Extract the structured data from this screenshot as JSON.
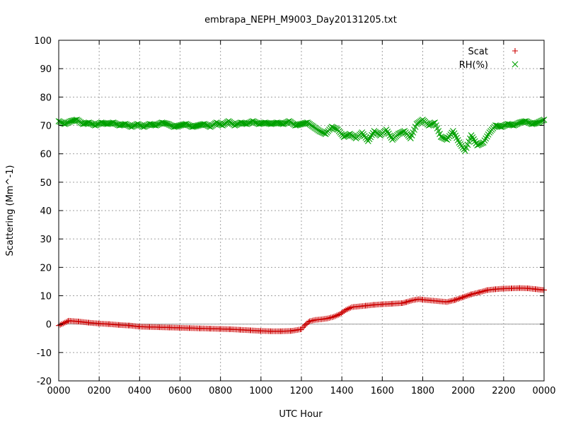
{
  "chart_data": {
    "type": "scatter",
    "title": "embrapa_NEPH_M9003_Day20131205.txt",
    "xlabel": "UTC Hour",
    "ylabel": "Scattering (Mm^-1)",
    "xlim": [
      0,
      24
    ],
    "ylim": [
      -20,
      100
    ],
    "y_ticks": [
      "-20",
      "-10",
      "0",
      "10",
      "20",
      "30",
      "40",
      "50",
      "60",
      "70",
      "80",
      "90",
      "100"
    ],
    "x_ticks": [
      "0000",
      "0200",
      "0400",
      "0600",
      "0800",
      "1000",
      "1200",
      "1400",
      "1600",
      "1800",
      "2000",
      "2200",
      "0000"
    ],
    "grid": true,
    "legend_position": "top-right",
    "zero_line": true,
    "series": [
      {
        "name": "Scat",
        "marker": "plus",
        "color": "#cc0000",
        "x": [
          0.0,
          0.5,
          1.0,
          1.5,
          2.0,
          2.5,
          3.0,
          3.5,
          4.0,
          4.5,
          5.0,
          5.5,
          6.0,
          6.5,
          7.0,
          7.5,
          8.0,
          8.5,
          9.0,
          9.5,
          10.0,
          10.5,
          11.0,
          11.5,
          12.0,
          12.2,
          12.4,
          12.7,
          13.0,
          13.3,
          13.6,
          13.9,
          14.2,
          14.5,
          14.8,
          15.2,
          15.6,
          16.0,
          16.5,
          17.0,
          17.2,
          17.5,
          17.8,
          18.0,
          18.3,
          18.6,
          18.9,
          19.2,
          19.6,
          20.0,
          20.4,
          20.8,
          21.2,
          21.6,
          22.0,
          22.4,
          22.8,
          23.2,
          23.6,
          24.0
        ],
        "y": [
          -0.5,
          1.2,
          0.9,
          0.5,
          0.2,
          0.0,
          -0.3,
          -0.5,
          -0.9,
          -1.0,
          -1.1,
          -1.2,
          -1.3,
          -1.4,
          -1.5,
          -1.6,
          -1.7,
          -1.8,
          -2.0,
          -2.2,
          -2.4,
          -2.5,
          -2.5,
          -2.4,
          -1.8,
          -0.2,
          1.0,
          1.5,
          1.7,
          2.0,
          2.6,
          3.5,
          5.0,
          6.0,
          6.2,
          6.5,
          6.8,
          7.0,
          7.2,
          7.4,
          7.8,
          8.4,
          8.8,
          8.6,
          8.4,
          8.2,
          8.0,
          7.8,
          8.5,
          9.5,
          10.5,
          11.2,
          12.0,
          12.3,
          12.5,
          12.6,
          12.7,
          12.6,
          12.3,
          12.0
        ]
      },
      {
        "name": "RH(%)",
        "marker": "cross",
        "color": "#00a000",
        "x": [
          0.0,
          0.3,
          0.6,
          0.9,
          1.2,
          1.5,
          1.8,
          2.1,
          2.4,
          2.7,
          3.0,
          3.3,
          3.6,
          3.9,
          4.2,
          4.5,
          4.8,
          5.1,
          5.4,
          5.7,
          6.0,
          6.3,
          6.6,
          6.9,
          7.2,
          7.5,
          7.8,
          8.1,
          8.4,
          8.7,
          9.0,
          9.3,
          9.6,
          9.9,
          10.2,
          10.5,
          10.8,
          11.1,
          11.4,
          11.7,
          12.0,
          12.3,
          12.6,
          12.9,
          13.2,
          13.5,
          13.8,
          14.1,
          14.4,
          14.7,
          15.0,
          15.3,
          15.6,
          15.9,
          16.2,
          16.5,
          16.8,
          17.1,
          17.4,
          17.7,
          18.0,
          18.3,
          18.6,
          18.9,
          19.2,
          19.5,
          19.8,
          20.1,
          20.4,
          20.7,
          21.0,
          21.3,
          21.6,
          21.9,
          22.2,
          22.5,
          22.8,
          23.1,
          23.4,
          23.7,
          24.0
        ],
        "y": [
          71.5,
          70.5,
          71.5,
          72.0,
          70.5,
          71.0,
          70.0,
          71.0,
          70.5,
          71.0,
          70.0,
          70.5,
          69.5,
          70.5,
          69.5,
          70.5,
          70.0,
          71.0,
          70.5,
          69.5,
          70.0,
          70.5,
          69.5,
          70.0,
          70.5,
          69.5,
          71.0,
          70.0,
          71.5,
          70.0,
          71.0,
          70.5,
          71.5,
          70.5,
          71.0,
          70.5,
          71.0,
          70.5,
          71.5,
          70.0,
          70.5,
          71.0,
          69.5,
          68.0,
          67.0,
          69.5,
          68.5,
          66.0,
          67.0,
          65.5,
          67.5,
          64.5,
          68.0,
          66.5,
          68.5,
          65.0,
          67.0,
          68.0,
          65.5,
          70.5,
          72.0,
          70.0,
          71.0,
          66.0,
          65.0,
          68.0,
          64.0,
          61.0,
          66.5,
          63.0,
          64.0,
          67.5,
          70.0,
          69.5,
          70.5,
          70.0,
          71.0,
          71.5,
          70.5,
          71.0,
          72.0
        ]
      }
    ]
  }
}
